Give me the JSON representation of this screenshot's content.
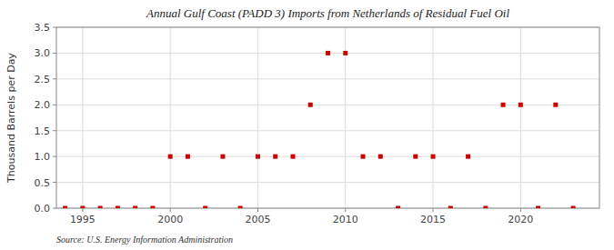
{
  "chart_data": {
    "type": "scatter",
    "title": "Annual Gulf Coast (PADD 3) Imports from Netherlands of Residual Fuel Oil",
    "y_label": "Thousand Barrels per Day",
    "annotations": [
      "Source: U.S. Energy Information Administration"
    ],
    "x": [
      1994,
      1995,
      1996,
      1997,
      1998,
      1999,
      2000,
      2001,
      2002,
      2003,
      2004,
      2005,
      2006,
      2007,
      2008,
      2009,
      2010,
      2011,
      2012,
      2013,
      2014,
      2015,
      2016,
      2017,
      2018,
      2019,
      2020,
      2021,
      2022,
      2023
    ],
    "values": [
      0,
      0,
      0,
      0,
      0,
      0,
      1,
      1,
      0,
      1,
      0,
      1,
      1,
      1,
      2,
      3,
      3,
      1,
      1,
      0,
      1,
      1,
      0,
      1,
      0,
      2,
      2,
      0,
      2,
      0
    ],
    "color": "#cc0000",
    "marker": "square",
    "grid": true,
    "xlim": [
      1993.5,
      2024.5
    ],
    "ylim": [
      0.0,
      3.5
    ],
    "xticks": [
      1995,
      2000,
      2005,
      2010,
      2015,
      2020
    ],
    "yticks": [
      {
        "value": 0.0,
        "label": "0.0"
      },
      0.5,
      {
        "value": 1.0,
        "label": "1.0"
      },
      1.5,
      {
        "value": 2.0,
        "label": "2.0"
      },
      2.5,
      {
        "value": 3.0,
        "label": "3.0"
      },
      3.5
    ]
  }
}
